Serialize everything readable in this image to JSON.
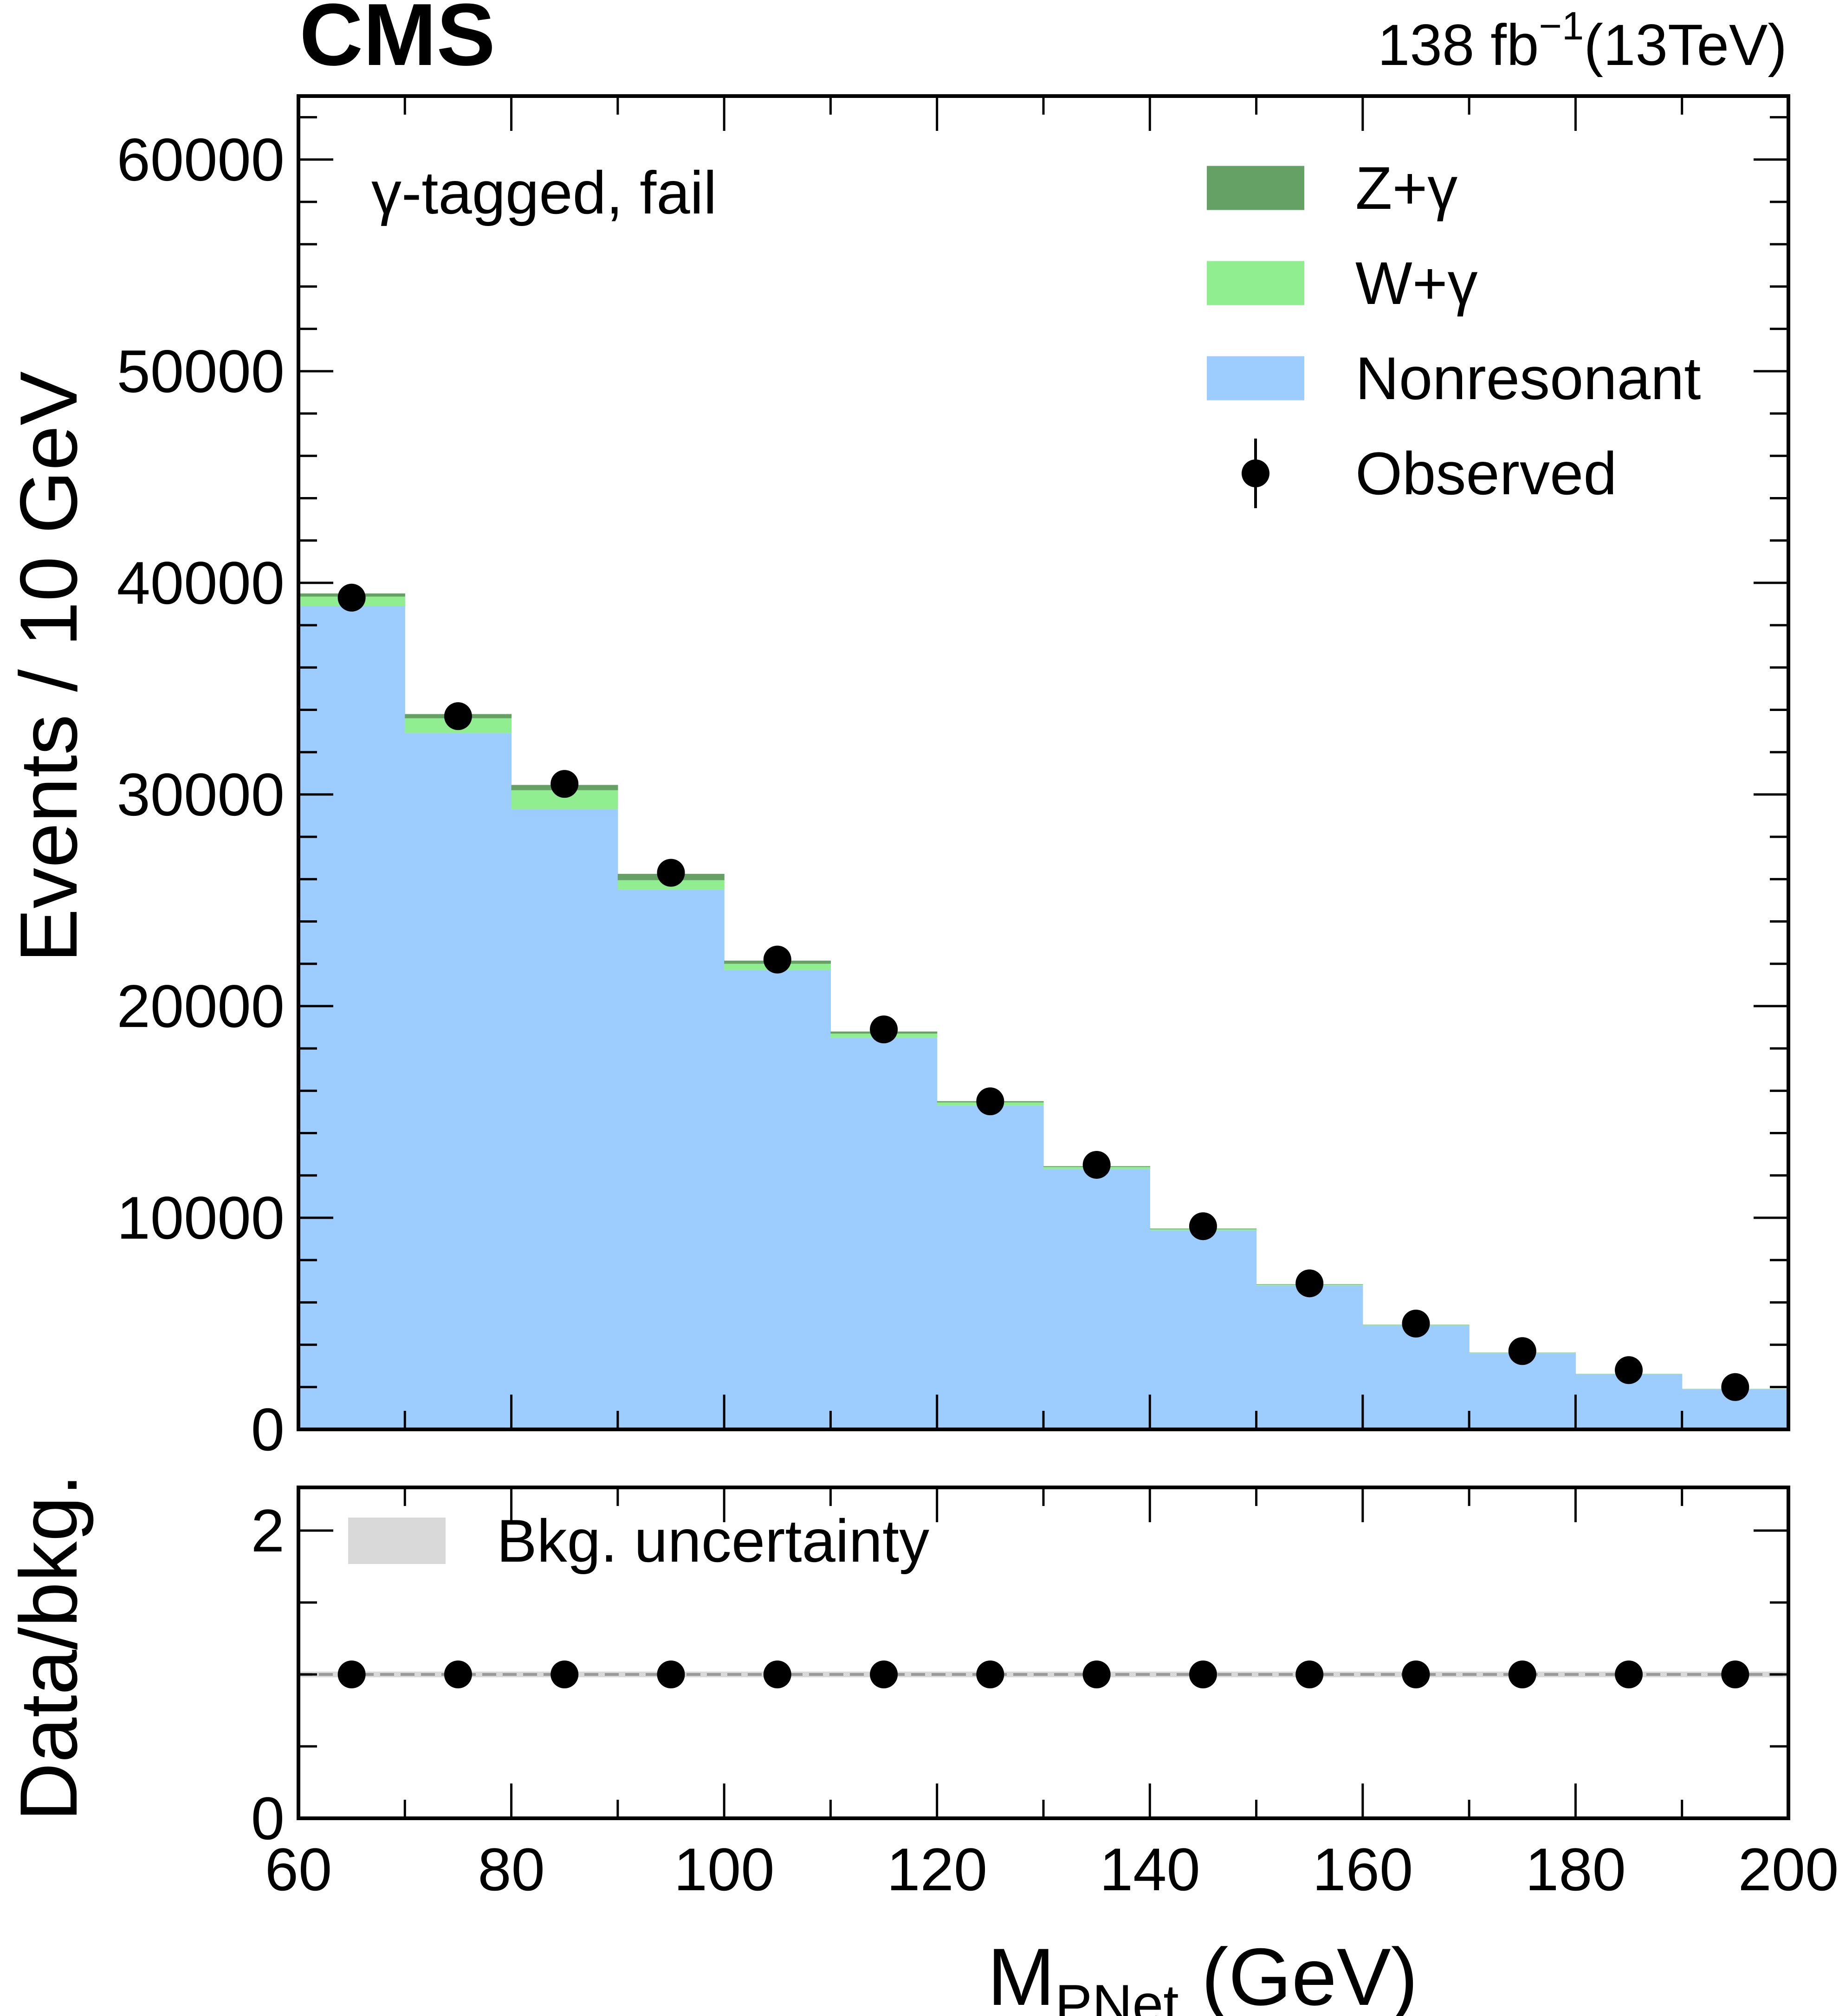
{
  "header": {
    "experiment": "CMS",
    "lumi_text": "138 fb",
    "lumi_exp": "−1",
    "energy_text": "(13TeV)"
  },
  "chart_data": [
    {
      "type": "bar",
      "stacked": true,
      "panel": "main",
      "category_label": "γ-tagged, fail",
      "ylabel": "Events / 10 GeV",
      "xlim": [
        60,
        200
      ],
      "ylim": [
        0,
        63000
      ],
      "y_ticks": [
        "0",
        "10000",
        "20000",
        "30000",
        "40000",
        "50000",
        "60000"
      ],
      "x_bin_edges": [
        60,
        70,
        80,
        90,
        100,
        110,
        120,
        130,
        140,
        150,
        160,
        170,
        180,
        190,
        200
      ],
      "series": [
        {
          "name": "Nonresonant",
          "color": "#9dccfe",
          "values": [
            38900,
            32900,
            29300,
            25500,
            21700,
            18500,
            15300,
            12300,
            9400,
            6800,
            4900,
            3600,
            2600,
            1900
          ]
        },
        {
          "name": "W+γ",
          "color": "#90ee90",
          "values": [
            450,
            700,
            900,
            450,
            300,
            200,
            150,
            100,
            60,
            40,
            30,
            20,
            15,
            10
          ]
        },
        {
          "name": "Z+γ",
          "color": "#65a065",
          "values": [
            150,
            200,
            250,
            300,
            150,
            100,
            60,
            40,
            30,
            20,
            15,
            10,
            8,
            5
          ]
        }
      ],
      "observed": {
        "name": "Observed",
        "x": [
          65,
          75,
          85,
          95,
          105,
          115,
          125,
          135,
          145,
          155,
          165,
          175,
          185,
          195
        ],
        "y": [
          39300,
          33700,
          30500,
          26300,
          22200,
          18900,
          15500,
          12500,
          9600,
          6900,
          5000,
          3700,
          2800,
          2000
        ]
      },
      "legend": {
        "position": "top-right",
        "entries": [
          "Z+γ",
          "W+γ",
          "Nonresonant",
          "Observed"
        ]
      }
    },
    {
      "type": "scatter",
      "panel": "ratio",
      "ylabel": "Data/bkg.",
      "xlabel_main": "M",
      "xlabel_sub": "PNet",
      "xlabel_unit": " (GeV)",
      "xlim": [
        60,
        200
      ],
      "ylim": [
        0,
        2.3
      ],
      "y_ticks": [
        "0",
        "2"
      ],
      "x_ticks": [
        "60",
        "80",
        "100",
        "120",
        "140",
        "160",
        "180",
        "200"
      ],
      "reference_line": 1.0,
      "uncertainty_band": {
        "name": "Bkg. uncertainty",
        "color": "#d9d9d9",
        "half_width": 0.02
      },
      "x": [
        65,
        75,
        85,
        95,
        105,
        115,
        125,
        135,
        145,
        155,
        165,
        175,
        185,
        195
      ],
      "y": [
        1.0,
        1.0,
        1.0,
        1.0,
        1.0,
        1.0,
        1.0,
        1.0,
        1.0,
        1.0,
        1.0,
        1.0,
        1.0,
        1.0
      ]
    }
  ]
}
